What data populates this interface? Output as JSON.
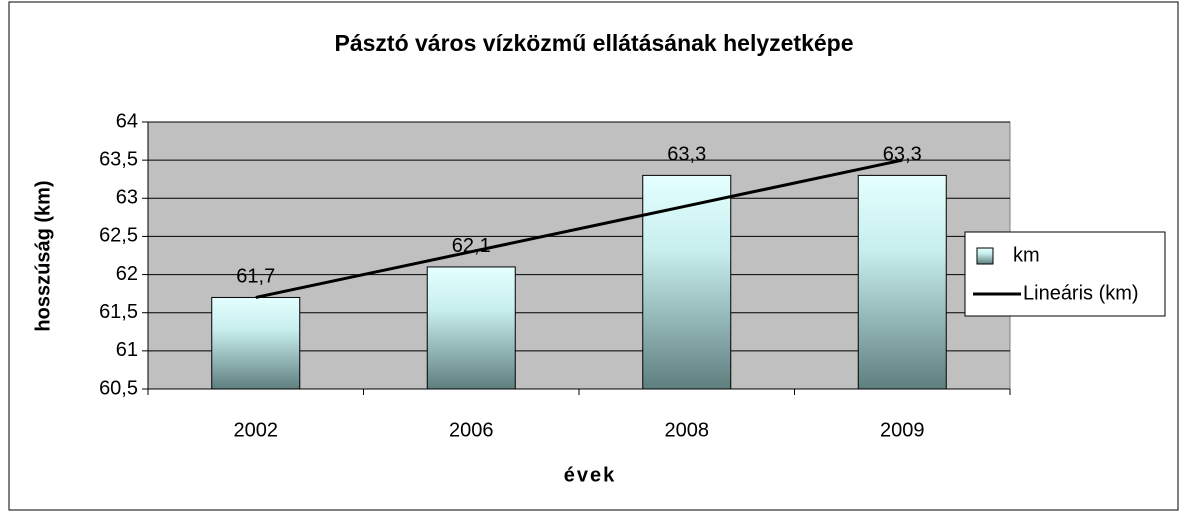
{
  "chart_data": {
    "type": "bar",
    "title": "Pásztó város vízközmű ellátásának helyzetképe",
    "x_label": "évek",
    "y_label": "hosszúság (km)",
    "categories": [
      "2002",
      "2006",
      "2008",
      "2009"
    ],
    "series": [
      {
        "name": "km",
        "type": "bar",
        "color": "#5f7f7f",
        "values": [
          61.7,
          62.1,
          63.3,
          63.3
        ],
        "value_labels": [
          "61,7",
          "62,1",
          "63,3",
          "63,3"
        ]
      },
      {
        "name": "Lineáris (km)",
        "type": "line",
        "color": "#000000",
        "values": [
          61.7,
          62.3,
          62.9,
          63.5
        ]
      }
    ],
    "ylim": [
      60.5,
      64
    ],
    "yticks": [
      {
        "value": 60.5,
        "label": "60,5"
      },
      61,
      {
        "value": 61.5,
        "label": "61,5"
      },
      62,
      {
        "value": 62.5,
        "label": "62,5"
      },
      63,
      {
        "value": 63.5,
        "label": "63,5"
      },
      64
    ],
    "grid": true,
    "legend": "right"
  }
}
